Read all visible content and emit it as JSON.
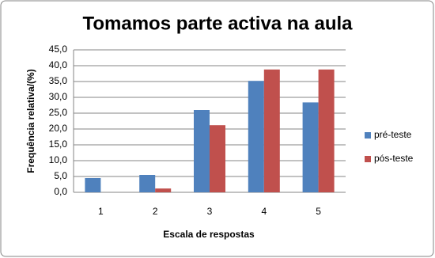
{
  "chart_data": {
    "type": "bar",
    "title": "Tomamos parte activa na aula",
    "y_label": "Frequência relativa/(%)",
    "x_label": "Escala de respostas",
    "categories": [
      "1",
      "2",
      "3",
      "4",
      "5"
    ],
    "series": [
      {
        "name": "pré-teste",
        "color": "#4f81bd",
        "values": [
          4.5,
          5.5,
          26.0,
          35.2,
          28.4
        ]
      },
      {
        "name": "pós-teste",
        "color": "#c0504d",
        "values": [
          0,
          1.2,
          21.2,
          38.8,
          38.8
        ]
      }
    ],
    "ylim": [
      0,
      45
    ],
    "yticks": [
      {
        "value": 0,
        "label": "0,0"
      },
      {
        "value": 5,
        "label": "5,0"
      },
      {
        "value": 10,
        "label": "10,0"
      },
      {
        "value": 15,
        "label": "15,0"
      },
      {
        "value": 20,
        "label": "20,0"
      },
      {
        "value": 25,
        "label": "25,0"
      },
      {
        "value": 30,
        "label": "30,0"
      },
      {
        "value": 35,
        "label": "35,0"
      },
      {
        "value": 40,
        "label": "40,0"
      },
      {
        "value": 45,
        "label": "45,0"
      }
    ],
    "grid": true,
    "legend": "right"
  }
}
